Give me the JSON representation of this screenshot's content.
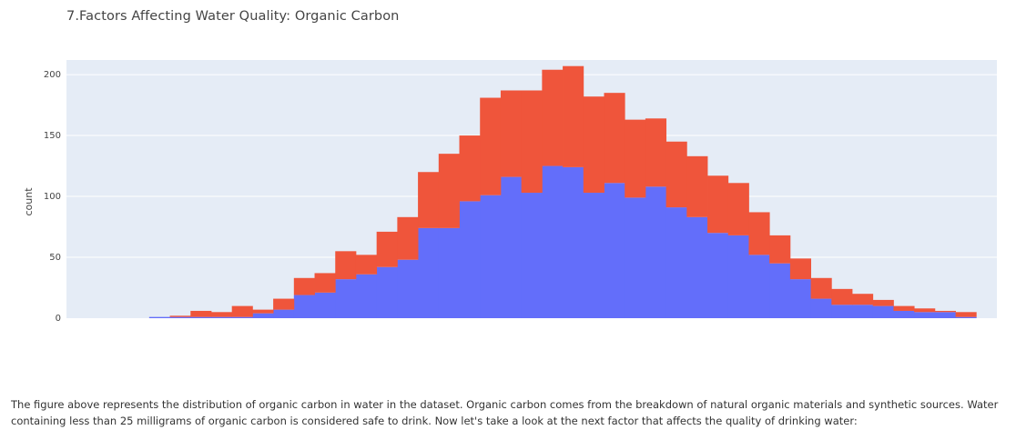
{
  "chart_data": {
    "type": "bar",
    "barmode": "stack",
    "title": "7.Factors Affecting Water Quality: Organic Carbon",
    "xlabel": "",
    "ylabel": "count",
    "ylim": [
      0,
      212
    ],
    "yticks": [
      0,
      50,
      100,
      150,
      200
    ],
    "grid": true,
    "bins": 45,
    "series": [
      {
        "color": "#636efa",
        "values": [
          0,
          0,
          0,
          0,
          1,
          1,
          1,
          1,
          1,
          4,
          7,
          19,
          21,
          32,
          36,
          42,
          48,
          74,
          74,
          96,
          101,
          116,
          103,
          125,
          124,
          103,
          111,
          99,
          108,
          91,
          83,
          70,
          68,
          52,
          45,
          32,
          16,
          11,
          11,
          10,
          6,
          5,
          5,
          1,
          0
        ]
      },
      {
        "color": "#ef553b",
        "values": [
          0,
          0,
          0,
          0,
          0,
          1,
          5,
          4,
          9,
          3,
          9,
          14,
          16,
          23,
          16,
          29,
          35,
          46,
          61,
          54,
          80,
          71,
          84,
          79,
          83,
          79,
          74,
          64,
          56,
          54,
          50,
          47,
          43,
          35,
          23,
          17,
          17,
          13,
          9,
          5,
          4,
          3,
          1,
          4,
          0
        ]
      }
    ]
  },
  "caption": "The figure above represents the distribution of organic carbon in water in the dataset. Organic carbon comes from the breakdown of natural organic materials and synthetic sources. Water containing less than 25 milligrams of organic carbon is considered safe to drink. Now let's take a look at the next factor that affects the quality of drinking water:"
}
